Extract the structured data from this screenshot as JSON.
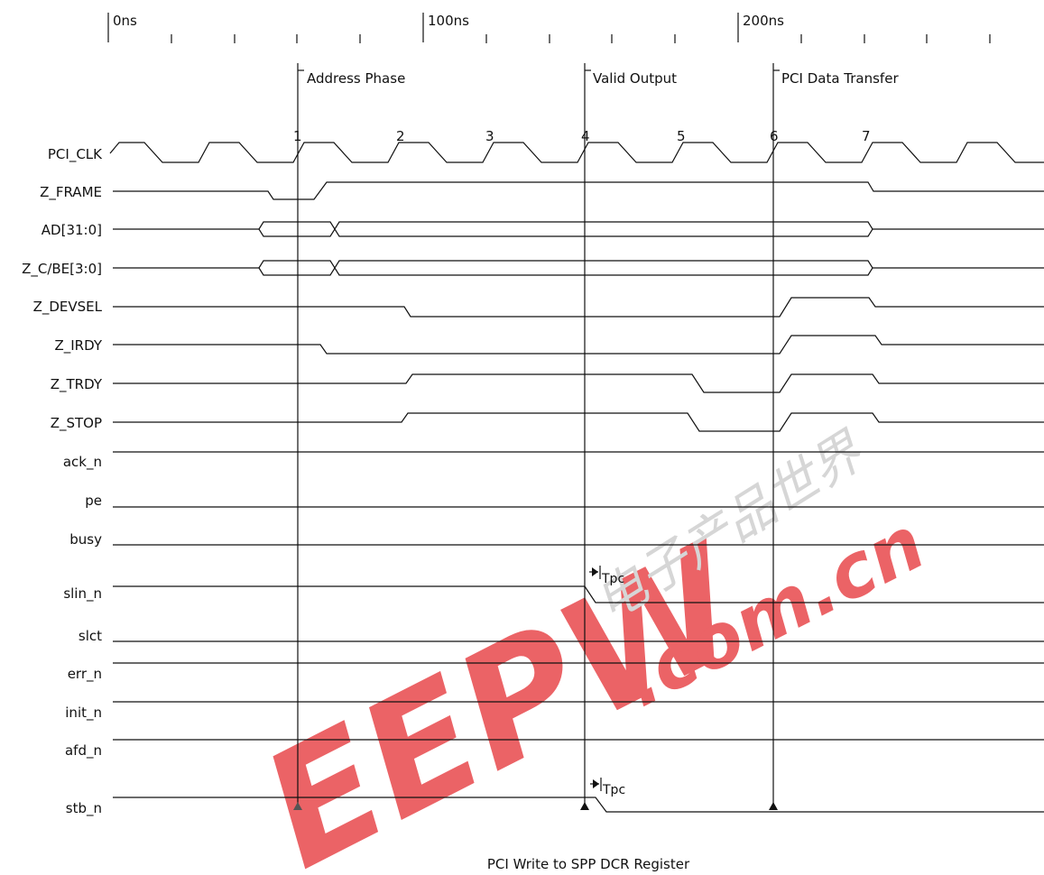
{
  "time_axis": {
    "labels": [
      "0ns",
      "100ns",
      "200ns"
    ]
  },
  "phases": {
    "address": "Address Phase",
    "valid_output": "Valid Output",
    "pci_transfer": "PCI Data Transfer"
  },
  "clock_edges": [
    "1",
    "2",
    "3",
    "4",
    "5",
    "6",
    "7"
  ],
  "signals": {
    "pci_clk": "PCI_CLK",
    "z_frame": "Z_FRAME",
    "ad": "AD[31:0]",
    "z_cbe": "Z_C/BE[3:0]",
    "z_devsel": "Z_DEVSEL",
    "z_irdy": "Z_IRDY",
    "z_trdy": "Z_TRDY",
    "z_stop": "Z_STOP",
    "ack_n": "ack_n",
    "pe": "pe",
    "busy": "busy",
    "slin_n": "slin_n",
    "slct": "slct",
    "err_n": "err_n",
    "init_n": "init_n",
    "afd_n": "afd_n",
    "stb_n": "stb_n"
  },
  "annotations": {
    "tpc_1": "Tpc",
    "tpc_2": "Tpc"
  },
  "caption": "PCI Write to SPP DCR Register",
  "watermark": {
    "brand": "EEPW",
    "domain": ".com.cn",
    "chinese": "电子产品世界",
    "color": "#e8484c"
  }
}
